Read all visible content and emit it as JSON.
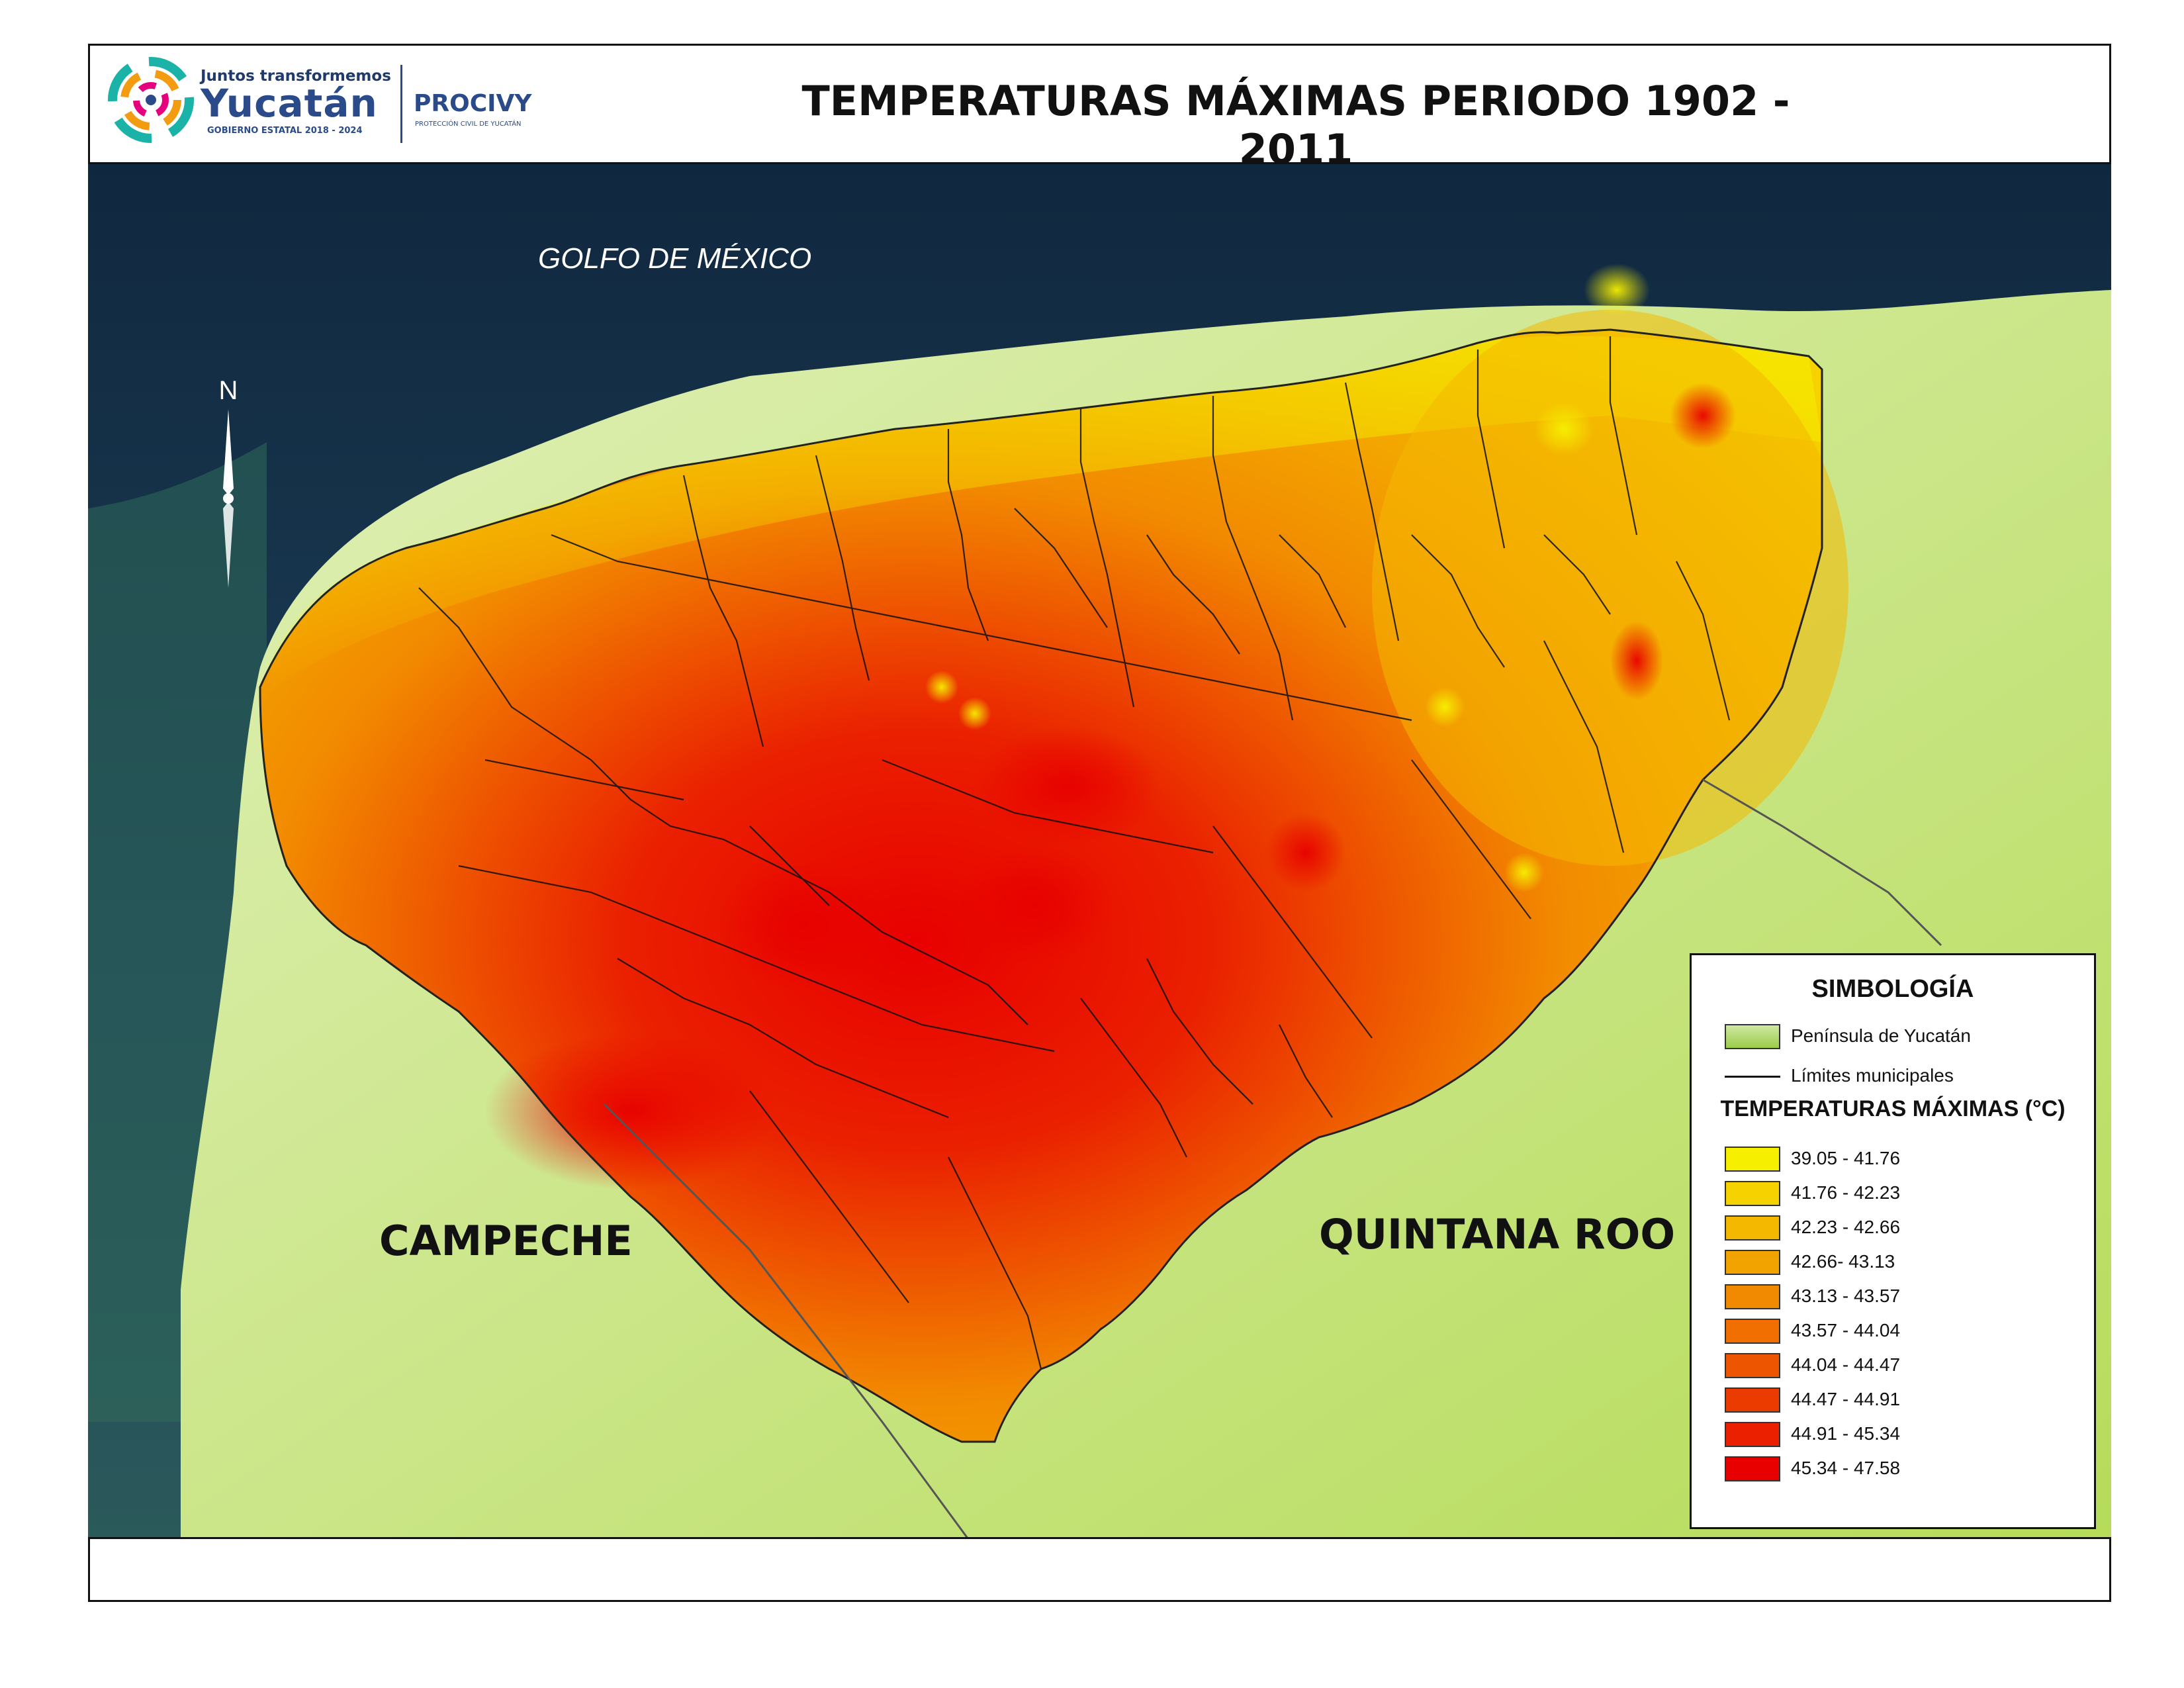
{
  "header": {
    "title": "TEMPERATURAS MÁXIMAS PERIODO 1902 - 2011",
    "logo_tagline": "Juntos transformemos",
    "logo_name": "Yucatán",
    "logo_government": "GOBIERNO ESTATAL 2018 - 2024",
    "logo_agency": "PROCIVY",
    "logo_agency_sub": "PROTECCIÓN CIVIL DE YUCATÁN"
  },
  "map": {
    "north_label": "N",
    "sea_label": "GOLFO DE MÉXICO",
    "region_labels": {
      "campeche": "CAMPECHE",
      "quintana_roo": "QUINTANA ROO"
    },
    "colors": {
      "sea": "#17314a",
      "peninsula": "#d6eca0",
      "outline": "#111111"
    }
  },
  "legend": {
    "title": "SIMBOLOGÍA",
    "peninsula_label": "Península de Yucatán",
    "boundary_label": "Límites municipales",
    "temperature_title": "TEMPERATURAS MÁXIMAS (°C)",
    "classes": [
      {
        "label": "39.05 - 41.76",
        "color": "#f6f000"
      },
      {
        "label": "41.76 - 42.23",
        "color": "#f5d200"
      },
      {
        "label": "42.23 - 42.66",
        "color": "#f4b800"
      },
      {
        "label": "42.66- 43.13",
        "color": "#f3a300"
      },
      {
        "label": "43.13 - 43.57",
        "color": "#f28a00"
      },
      {
        "label": "43.57 - 44.04",
        "color": "#f06f00"
      },
      {
        "label": "44.04 - 44.47",
        "color": "#ee5500"
      },
      {
        "label": "44.47 - 44.91",
        "color": "#ec3b00"
      },
      {
        "label": "44.91 - 45.34",
        "color": "#ea2000"
      },
      {
        "label": "45.34 - 47.58",
        "color": "#e80000"
      }
    ]
  }
}
